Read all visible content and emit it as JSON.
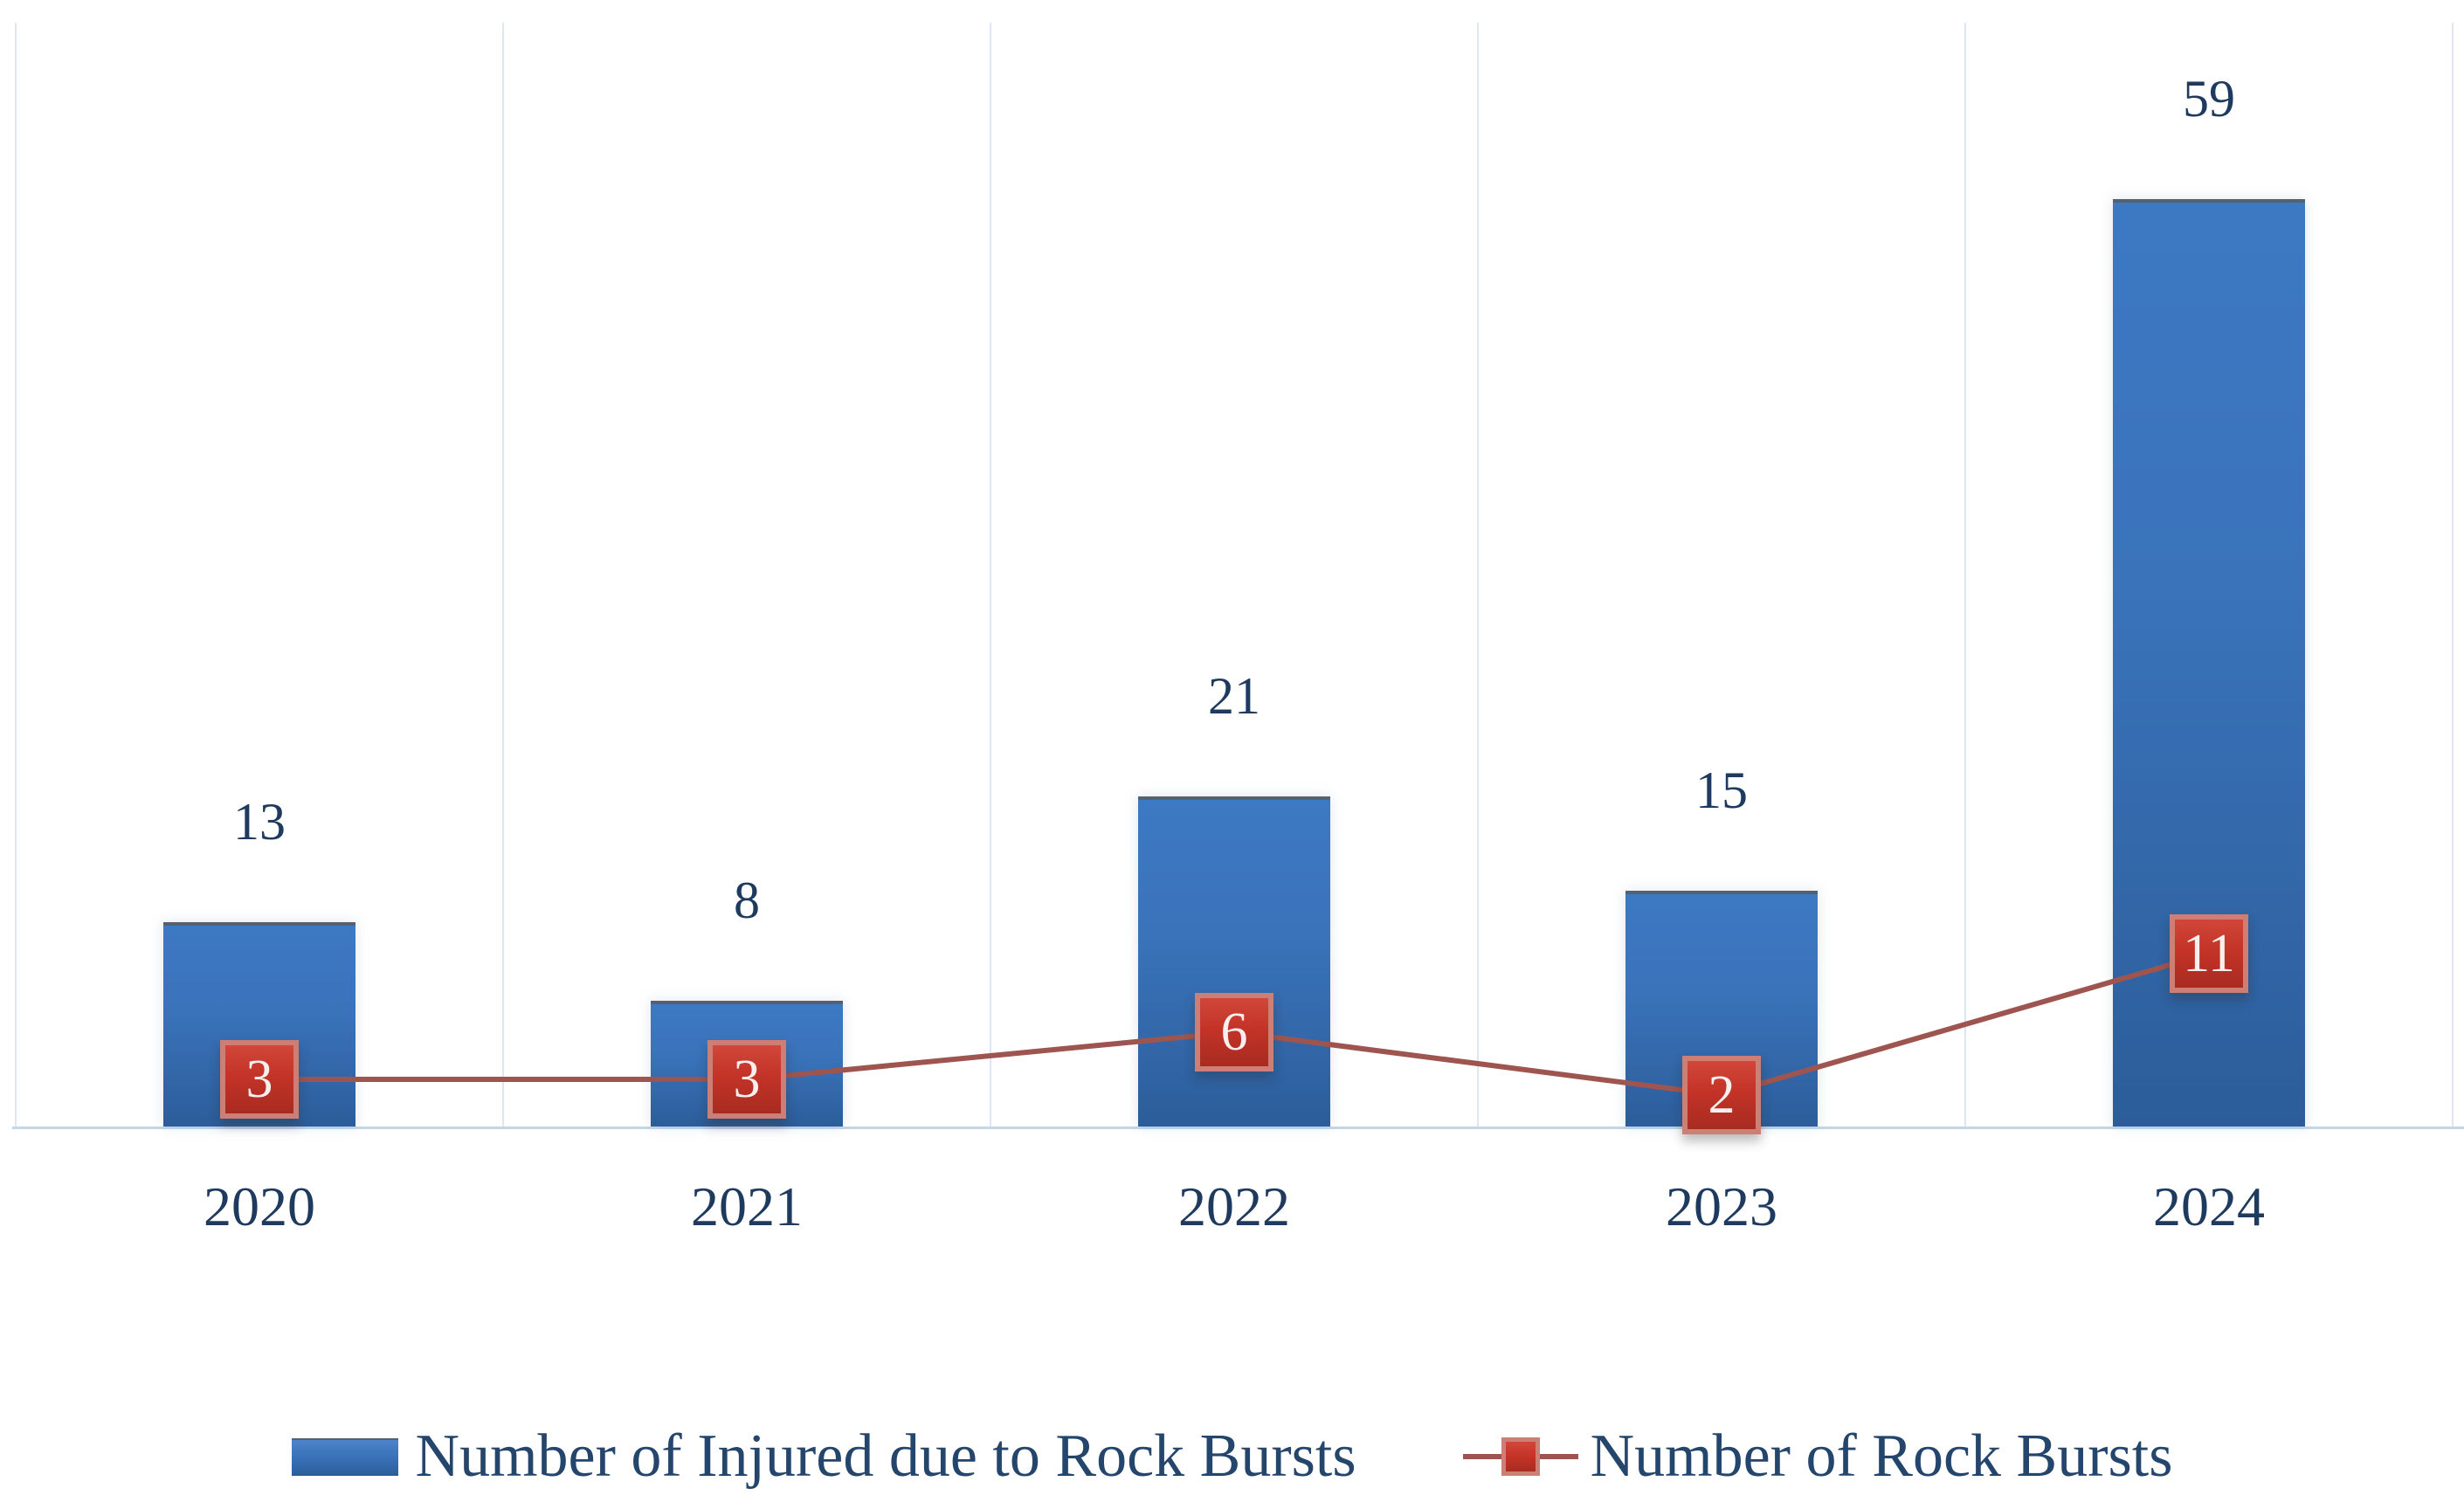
{
  "chart_data": {
    "type": "combo-bar-line",
    "categories": [
      "2020",
      "2021",
      "2022",
      "2023",
      "2024"
    ],
    "series": [
      {
        "name": "Number of Injured due to Rock Bursts",
        "type": "bar",
        "values": [
          13,
          8,
          21,
          15,
          59
        ],
        "data_labels": [
          "13",
          "8",
          "21",
          "15",
          "59"
        ],
        "color": "#3a73ba"
      },
      {
        "name": "Number of Rock Bursts",
        "type": "line",
        "values": [
          3,
          3,
          6,
          2,
          11
        ],
        "data_labels": [
          "3",
          "3",
          "6",
          "2",
          "11"
        ],
        "color": "#9e5550",
        "marker_color": "#c43327",
        "marker_border_color": "#cd7f76"
      }
    ],
    "title": "",
    "xlabel": "",
    "ylabel": "",
    "ylim": [
      0,
      70
    ],
    "grid": "vertical-only",
    "gridline_color": "#dbe7f2",
    "axis_line_color": "#c2d7e8",
    "label_color": "#1f3a5f",
    "legend_text_color": "#24456c",
    "legend_position": "bottom",
    "data_labels_shown": true
  }
}
